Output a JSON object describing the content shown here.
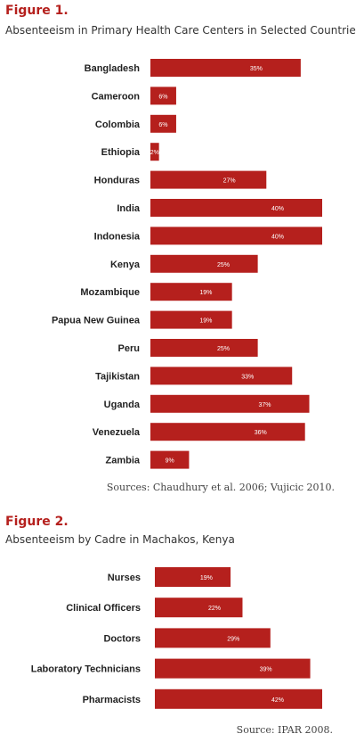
{
  "figure1": {
    "heading": "Figure 1.",
    "subtitle": "Absenteeism in Primary Health Care Centers in Selected Countries",
    "source": "Sources: Chaudhury et al. 2006; Vujicic 2010."
  },
  "figure2": {
    "heading": "Figure 2.",
    "subtitle": "Absenteeism by Cadre in Machakos, Kenya",
    "source": "Source: IPAR 2008."
  },
  "colors": {
    "bar": "#b5201d",
    "heading": "#b5201d"
  },
  "chart_data": [
    {
      "type": "bar",
      "orientation": "horizontal",
      "title": "Absenteeism in Primary Health Care Centers in Selected Countries",
      "categories": [
        "Bangladesh",
        "Cameroon",
        "Colombia",
        "Ethiopia",
        "Honduras",
        "India",
        "Indonesia",
        "Kenya",
        "Mozambique",
        "Papua New Guinea",
        "Peru",
        "Tajikistan",
        "Uganda",
        "Venezuela",
        "Zambia"
      ],
      "values": [
        35,
        6,
        6,
        2,
        27,
        40,
        40,
        25,
        19,
        19,
        25,
        33,
        37,
        36,
        9
      ],
      "data_labels": [
        "35%",
        "6%",
        "6%",
        "2%",
        "27%",
        "40%",
        "40%",
        "25%",
        "19%",
        "19%",
        "25%",
        "33%",
        "37%",
        "36%",
        "9%"
      ],
      "xlim": [
        0,
        40
      ]
    },
    {
      "type": "bar",
      "orientation": "horizontal",
      "title": "Absenteeism by Cadre in Machakos, Kenya",
      "categories": [
        "Nurses",
        "Clinical Officers",
        "Doctors",
        "Laboratory Technicians",
        "Pharmacists"
      ],
      "values": [
        19,
        22,
        29,
        39,
        42
      ],
      "data_labels": [
        "19%",
        "22%",
        "29%",
        "39%",
        "42%"
      ],
      "xlim": [
        0,
        42
      ]
    }
  ]
}
